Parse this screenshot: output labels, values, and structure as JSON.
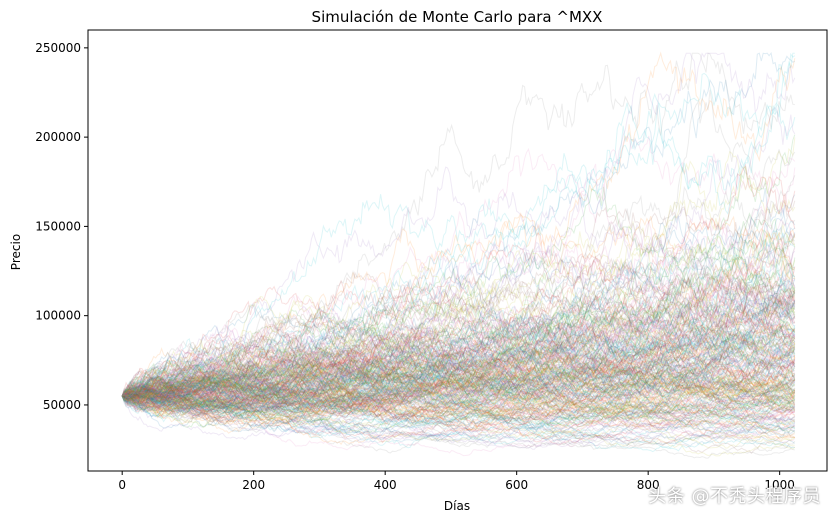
{
  "chart_data": {
    "type": "line",
    "title": "Simulación de Monte Carlo para ^MXX",
    "xlabel": "Días",
    "ylabel": "Precio",
    "xlim": [
      -52,
      1072
    ],
    "ylim": [
      13000,
      260000
    ],
    "x_ticks": [
      0,
      200,
      400,
      600,
      800,
      1000
    ],
    "y_ticks": [
      50000,
      100000,
      150000,
      200000,
      250000
    ],
    "x_tick_labels": [
      "0",
      "200",
      "400",
      "600",
      "800",
      "1000"
    ],
    "y_tick_labels": [
      "50000",
      "100000",
      "150000",
      "200000",
      "250000"
    ],
    "grid": false,
    "legend": "none",
    "simulation": {
      "start_price": 55000,
      "days": 1023,
      "paths_drawn": 320,
      "median_final": 75000,
      "p5_final": 30000,
      "p95_final": 160000,
      "max_price": 247000,
      "min_price": 18000
    }
  },
  "watermark": "头条 @不秃头程序员"
}
